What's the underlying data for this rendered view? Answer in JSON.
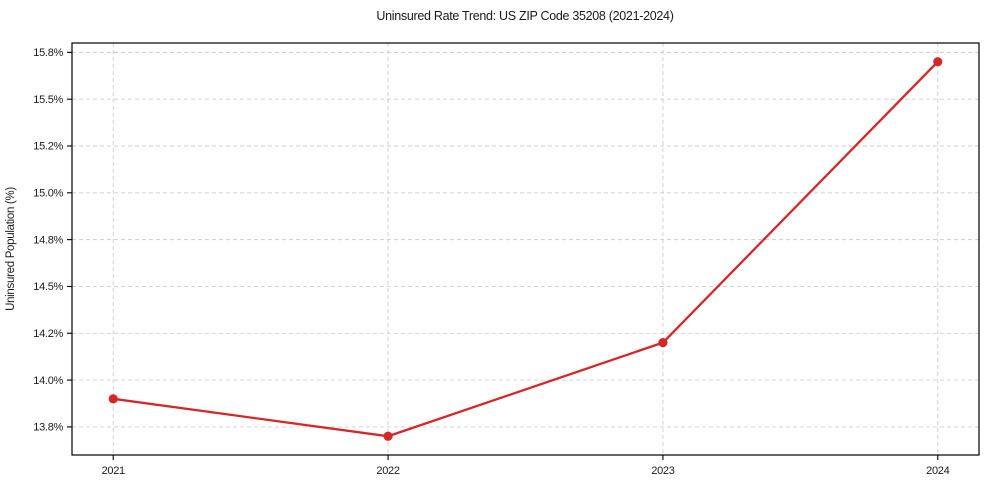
{
  "chart_data": {
    "type": "line",
    "title": "Uninsured Rate Trend: US ZIP Code 35208 (2021-2024)",
    "xlabel": "",
    "ylabel": "Uninsured Population (%)",
    "x": [
      2021,
      2022,
      2023,
      2024
    ],
    "x_tick_labels": [
      "2021",
      "2022",
      "2023",
      "2024"
    ],
    "series": [
      {
        "name": "Uninsured rate",
        "values": [
          13.9,
          13.7,
          14.2,
          15.7
        ]
      }
    ],
    "y_ticks": [
      {
        "value": 13.75,
        "label": "13.8%"
      },
      {
        "value": 14.0,
        "label": "14.0%"
      },
      {
        "value": 14.25,
        "label": "14.2%"
      },
      {
        "value": 14.5,
        "label": "14.5%"
      },
      {
        "value": 14.75,
        "label": "14.8%"
      },
      {
        "value": 15.0,
        "label": "15.0%"
      },
      {
        "value": 15.25,
        "label": "15.2%"
      },
      {
        "value": 15.5,
        "label": "15.5%"
      },
      {
        "value": 15.75,
        "label": "15.8%"
      }
    ],
    "ylim": [
      13.6,
      15.8
    ],
    "xlim": [
      2020.85,
      2024.15
    ],
    "grid": true,
    "grid_style": "dashed",
    "legend": false,
    "marker": "circle",
    "line_color": "#d62728",
    "grid_color": "#cdcdcd",
    "spine_color": "#000000",
    "text_color": "#1a1a1a"
  }
}
